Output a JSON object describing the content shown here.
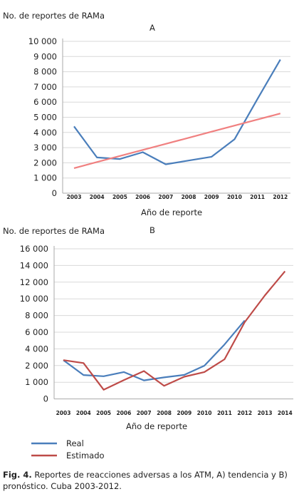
{
  "chart_data": [
    {
      "type": "line",
      "panel_label": "A",
      "ylabel": "No. de reportes de RAMa",
      "xlabel": "Año de reporte",
      "ytick_labels": [
        "0",
        "1 000",
        "2 000",
        "3 000",
        "4 000",
        "5 000",
        "6 000",
        "7 000",
        "8 000",
        "9 000",
        "10 000"
      ],
      "ylim": [
        0,
        10000
      ],
      "categories": [
        "2003",
        "2004",
        "2005",
        "2006",
        "2007",
        "2008",
        "2009",
        "2010",
        "2011",
        "2012"
      ],
      "series": [
        {
          "color": "#4a7ebb",
          "values": [
            4400,
            2350,
            2250,
            2700,
            1900,
            2150,
            2400,
            3550,
            6200,
            8800
          ]
        },
        {
          "color": "#f08080",
          "values": [
            1650,
            2050,
            2450,
            2850,
            3250,
            3650,
            4050,
            4450,
            4850,
            5250
          ]
        }
      ],
      "grid": "horizontal"
    },
    {
      "type": "line",
      "panel_label": "B",
      "ylabel": "No. de reportes de RAMa",
      "xlabel": "Año de reporte",
      "ytick_labels": [
        "0",
        "1 000",
        "2 000",
        "4 000",
        "6 000",
        "8 000",
        "10 000",
        "12 000",
        "14 000",
        "16 000"
      ],
      "ylim": [
        0,
        16000
      ],
      "categories": [
        "2003",
        "2004",
        "2005",
        "2006",
        "2007",
        "2008",
        "2009",
        "2010",
        "2011",
        "2012",
        "2013",
        "2014"
      ],
      "series": [
        {
          "name": "Real",
          "color": "#4a7ebb",
          "values": [
            2650,
            1430,
            1360,
            1610,
            1110,
            1290,
            1440,
            1990,
            4530,
            7400,
            null,
            null
          ]
        },
        {
          "name": "Estimado",
          "color": "#be4b48",
          "values": [
            2650,
            2300,
            550,
            1130,
            1670,
            780,
            1330,
            1610,
            2750,
            7200,
            10400,
            13300
          ]
        }
      ],
      "legend_position": "bottom-left",
      "grid": "horizontal"
    }
  ],
  "caption": {
    "label": "Fig. 4.",
    "text": " Reportes de reacciones adversas a los ATM, A) tendencia y B) pronóstico. Cuba 2003-2012."
  }
}
